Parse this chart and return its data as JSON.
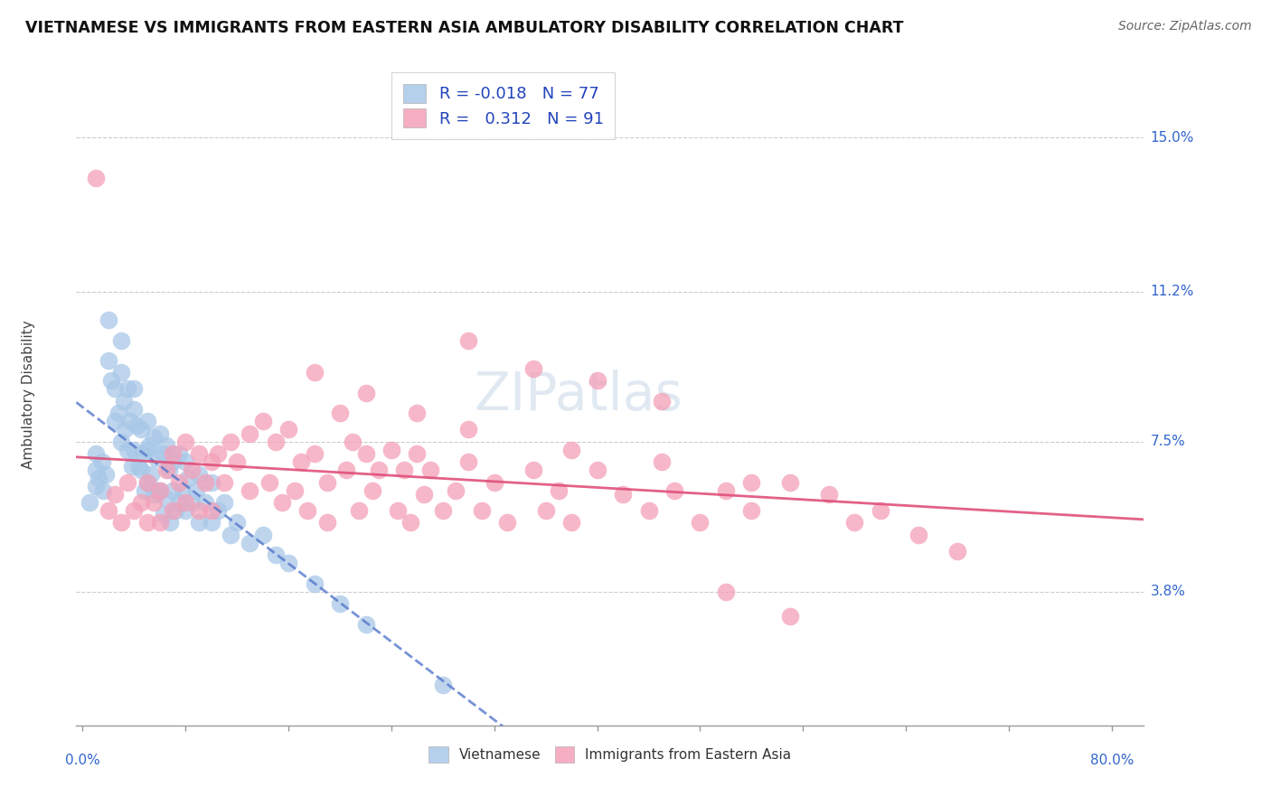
{
  "title": "VIETNAMESE VS IMMIGRANTS FROM EASTERN ASIA AMBULATORY DISABILITY CORRELATION CHART",
  "source": "Source: ZipAtlas.com",
  "ylabel": "Ambulatory Disability",
  "ytick_labels": [
    "15.0%",
    "11.2%",
    "7.5%",
    "3.8%"
  ],
  "ytick_values": [
    0.15,
    0.112,
    0.075,
    0.038
  ],
  "ylim": [
    0.005,
    0.168
  ],
  "xlim": [
    -0.005,
    0.825
  ],
  "legend1_label": "R = -0.018   N = 77",
  "legend2_label": "R =   0.312   N = 91",
  "series1_color": "#a8c8e8",
  "series2_color": "#f4a0b8",
  "trend1_color": "#5577cc",
  "trend2_color": "#e0507a",
  "watermark": "ZIPatlas",
  "bottom_legend": [
    "Vietnamese",
    "Immigrants from Eastern Asia"
  ],
  "xtick_positions": [
    0.0,
    0.08,
    0.16,
    0.24,
    0.32,
    0.4,
    0.48,
    0.56,
    0.64,
    0.72,
    0.8
  ],
  "blue_x": [
    0.005,
    0.01,
    0.01,
    0.01,
    0.012,
    0.015,
    0.016,
    0.018,
    0.02,
    0.02,
    0.022,
    0.025,
    0.025,
    0.028,
    0.03,
    0.03,
    0.03,
    0.032,
    0.033,
    0.035,
    0.035,
    0.037,
    0.038,
    0.04,
    0.04,
    0.04,
    0.042,
    0.043,
    0.045,
    0.045,
    0.047,
    0.048,
    0.05,
    0.05,
    0.05,
    0.052,
    0.053,
    0.055,
    0.055,
    0.057,
    0.058,
    0.06,
    0.06,
    0.062,
    0.063,
    0.065,
    0.065,
    0.067,
    0.068,
    0.07,
    0.07,
    0.072,
    0.075,
    0.075,
    0.078,
    0.08,
    0.08,
    0.082,
    0.085,
    0.088,
    0.09,
    0.09,
    0.095,
    0.1,
    0.1,
    0.105,
    0.11,
    0.115,
    0.12,
    0.13,
    0.14,
    0.15,
    0.16,
    0.18,
    0.2,
    0.22,
    0.28
  ],
  "blue_y": [
    0.06,
    0.068,
    0.072,
    0.064,
    0.066,
    0.07,
    0.063,
    0.067,
    0.105,
    0.095,
    0.09,
    0.088,
    0.08,
    0.082,
    0.1,
    0.092,
    0.075,
    0.085,
    0.078,
    0.088,
    0.073,
    0.08,
    0.069,
    0.088,
    0.083,
    0.073,
    0.079,
    0.069,
    0.078,
    0.068,
    0.072,
    0.063,
    0.08,
    0.073,
    0.065,
    0.074,
    0.067,
    0.076,
    0.062,
    0.071,
    0.063,
    0.077,
    0.063,
    0.072,
    0.057,
    0.074,
    0.061,
    0.068,
    0.055,
    0.07,
    0.063,
    0.058,
    0.072,
    0.06,
    0.063,
    0.07,
    0.058,
    0.066,
    0.06,
    0.063,
    0.067,
    0.055,
    0.06,
    0.065,
    0.055,
    0.058,
    0.06,
    0.052,
    0.055,
    0.05,
    0.052,
    0.047,
    0.045,
    0.04,
    0.035,
    0.03,
    0.015
  ],
  "pink_x": [
    0.01,
    0.02,
    0.025,
    0.03,
    0.035,
    0.04,
    0.045,
    0.05,
    0.05,
    0.055,
    0.06,
    0.06,
    0.065,
    0.07,
    0.07,
    0.075,
    0.08,
    0.08,
    0.085,
    0.09,
    0.09,
    0.095,
    0.1,
    0.1,
    0.105,
    0.11,
    0.115,
    0.12,
    0.13,
    0.13,
    0.14,
    0.145,
    0.15,
    0.155,
    0.16,
    0.165,
    0.17,
    0.175,
    0.18,
    0.19,
    0.19,
    0.2,
    0.205,
    0.21,
    0.215,
    0.22,
    0.225,
    0.23,
    0.24,
    0.245,
    0.25,
    0.255,
    0.26,
    0.265,
    0.27,
    0.28,
    0.29,
    0.3,
    0.31,
    0.32,
    0.33,
    0.35,
    0.36,
    0.37,
    0.38,
    0.4,
    0.42,
    0.44,
    0.46,
    0.48,
    0.5,
    0.52,
    0.55,
    0.58,
    0.6,
    0.62,
    0.65,
    0.68,
    0.5,
    0.55,
    0.3,
    0.35,
    0.4,
    0.45,
    0.18,
    0.22,
    0.26,
    0.3,
    0.38,
    0.45,
    0.52
  ],
  "pink_y": [
    0.14,
    0.058,
    0.062,
    0.055,
    0.065,
    0.058,
    0.06,
    0.065,
    0.055,
    0.06,
    0.063,
    0.055,
    0.068,
    0.072,
    0.058,
    0.065,
    0.075,
    0.06,
    0.068,
    0.072,
    0.058,
    0.065,
    0.07,
    0.058,
    0.072,
    0.065,
    0.075,
    0.07,
    0.077,
    0.063,
    0.08,
    0.065,
    0.075,
    0.06,
    0.078,
    0.063,
    0.07,
    0.058,
    0.072,
    0.065,
    0.055,
    0.082,
    0.068,
    0.075,
    0.058,
    0.072,
    0.063,
    0.068,
    0.073,
    0.058,
    0.068,
    0.055,
    0.072,
    0.062,
    0.068,
    0.058,
    0.063,
    0.07,
    0.058,
    0.065,
    0.055,
    0.068,
    0.058,
    0.063,
    0.055,
    0.068,
    0.062,
    0.058,
    0.063,
    0.055,
    0.063,
    0.058,
    0.065,
    0.062,
    0.055,
    0.058,
    0.052,
    0.048,
    0.038,
    0.032,
    0.1,
    0.093,
    0.09,
    0.085,
    0.092,
    0.087,
    0.082,
    0.078,
    0.073,
    0.07,
    0.065
  ]
}
